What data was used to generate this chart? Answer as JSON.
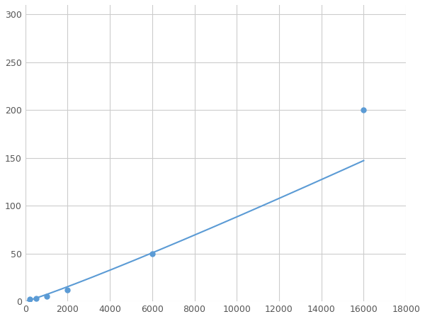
{
  "x_data": [
    200,
    500,
    1000,
    2000,
    6000,
    16000
  ],
  "y_data": [
    2,
    3,
    5,
    12,
    50,
    200
  ],
  "line_color": "#5b9bd5",
  "marker_color": "#5b9bd5",
  "marker_size": 5,
  "line_width": 1.5,
  "xlim": [
    0,
    18000
  ],
  "ylim": [
    0,
    310
  ],
  "xticks": [
    0,
    2000,
    4000,
    6000,
    8000,
    10000,
    12000,
    14000,
    16000,
    18000
  ],
  "yticks": [
    0,
    50,
    100,
    150,
    200,
    250,
    300
  ],
  "grid_color": "#cccccc",
  "background_color": "#ffffff",
  "fig_width": 6.0,
  "fig_height": 4.5,
  "dpi": 100
}
